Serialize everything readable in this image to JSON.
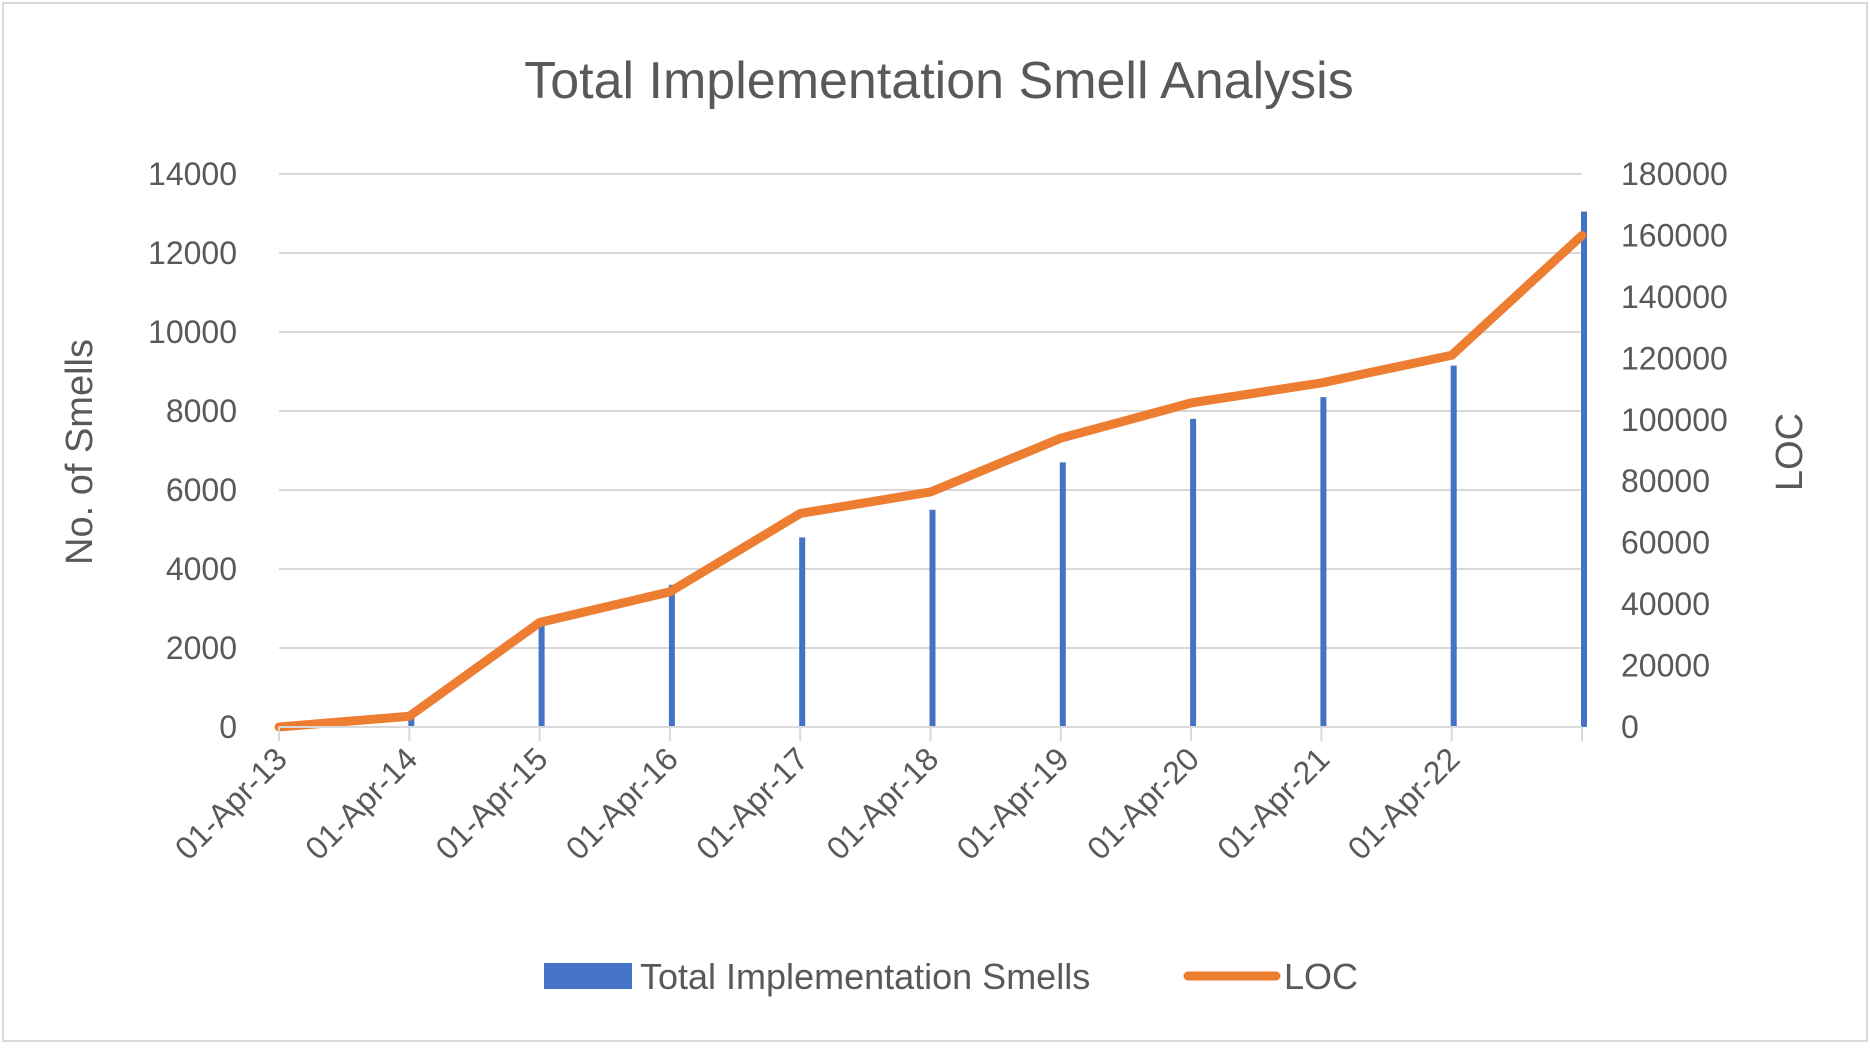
{
  "chart_data": {
    "type": "bar+line",
    "title": "Total Implementation Smell Analysis",
    "categories": [
      "01-Apr-13",
      "01-Apr-14",
      "01-Apr-15",
      "01-Apr-16",
      "01-Apr-17",
      "01-Apr-18",
      "01-Apr-19",
      "01-Apr-20",
      "01-Apr-21",
      "01-Apr-22",
      ""
    ],
    "series": [
      {
        "name": "Total Implementation Smells",
        "kind": "bar",
        "axis": "left",
        "color": "#4472c4",
        "values": [
          40,
          250,
          2600,
          3600,
          4800,
          5500,
          6700,
          7800,
          8350,
          9150,
          13050
        ]
      },
      {
        "name": "LOC",
        "kind": "line",
        "axis": "right",
        "color": "#ed7d31",
        "values": [
          0,
          3500,
          34000,
          44000,
          69500,
          76500,
          94000,
          105500,
          112000,
          121000,
          160000
        ]
      }
    ],
    "ylabel": "No. of Smells",
    "y2label": "LOC",
    "ylim": [
      0,
      14000
    ],
    "yticks": [
      "0",
      "2000",
      "4000",
      "6000",
      "8000",
      "10000",
      "12000",
      "14000"
    ],
    "y2lim": [
      0,
      180000
    ],
    "y2ticks": [
      "0",
      "20000",
      "40000",
      "60000",
      "80000",
      "100000",
      "120000",
      "140000",
      "160000",
      "180000"
    ],
    "grid": true,
    "legend": "bottom"
  }
}
